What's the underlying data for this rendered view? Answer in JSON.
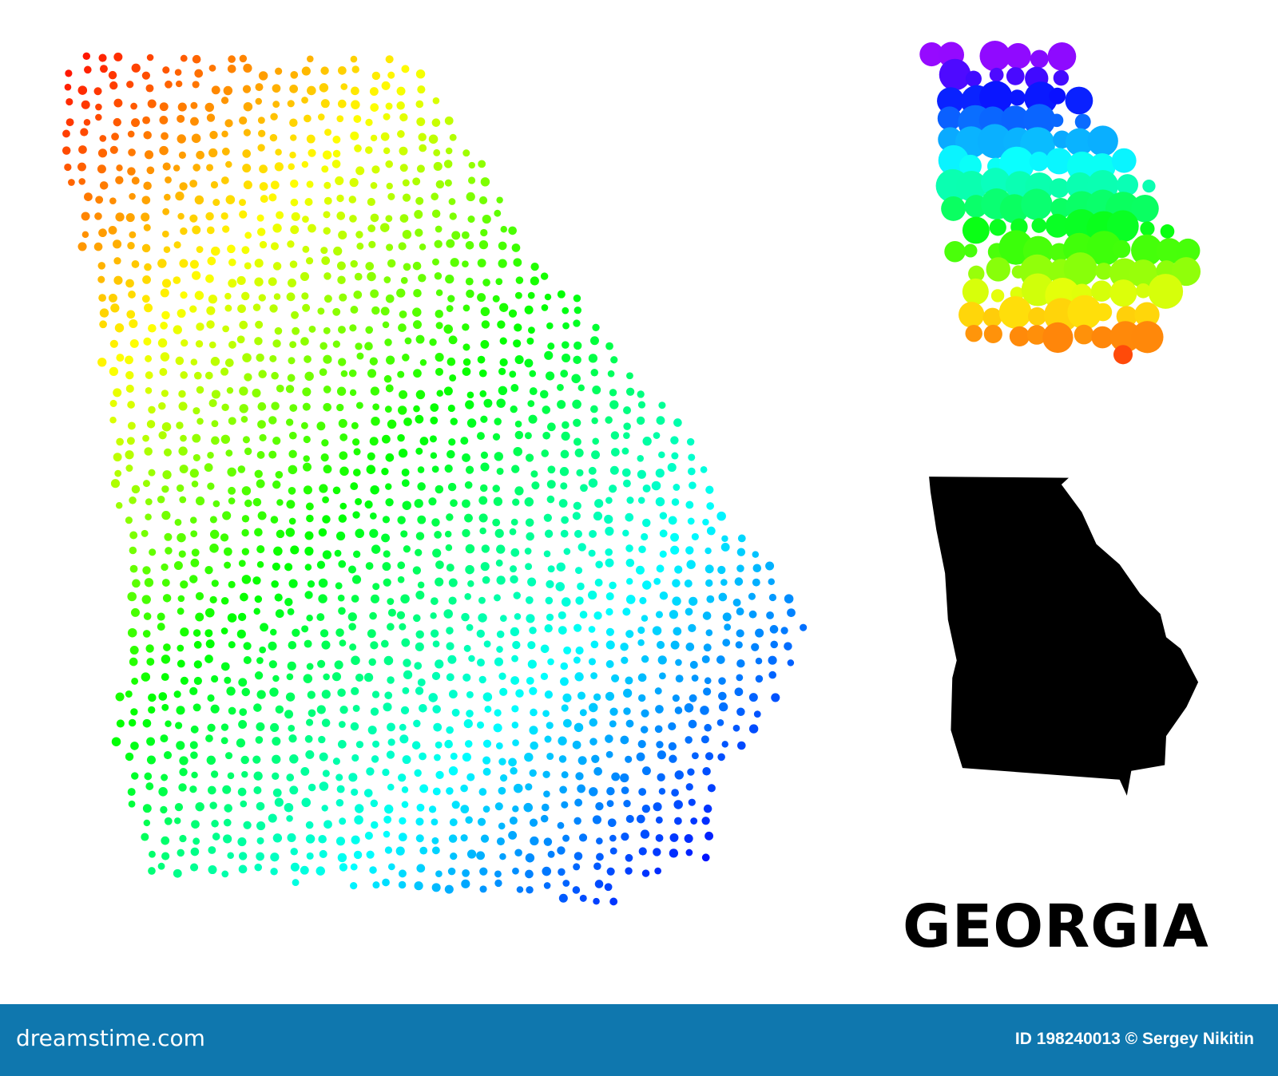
{
  "title": "GEORGIA",
  "footer": {
    "logo": "dreamstime.com",
    "credit": "ID 198240013 © Sergey Nikitin",
    "background_color": "#0f77ae"
  },
  "maps": [
    {
      "name": "dotted-spectrum-map",
      "style": "small dots, rainbow gradient red top-left to violet bottom-right"
    },
    {
      "name": "bubble-spectrum-map",
      "style": "large circles, rainbow gradient violet top to red bottom"
    },
    {
      "name": "solid-silhouette-map",
      "color": "#000000"
    }
  ]
}
